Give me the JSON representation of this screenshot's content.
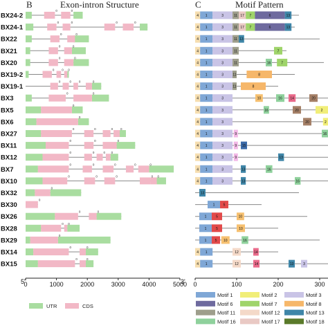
{
  "panel_b": {
    "letter": "B",
    "title": "Exon-intron Structure",
    "end5": "5'",
    "end3": "3'",
    "axis_ticks": [
      "0",
      "1000",
      "2000",
      "3000",
      "4000",
      "5000"
    ],
    "legend": [
      {
        "label": "UTR",
        "color": "#a9dda0"
      },
      {
        "label": "CDS",
        "color": "#f2b8c6"
      }
    ]
  },
  "panel_c": {
    "letter": "C",
    "title": "Motif Pattern",
    "axis_ticks": [
      "0",
      "100",
      "200",
      "300"
    ]
  },
  "genes": [
    "BX24-2",
    "BX24-1",
    "BX22",
    "BX21",
    "BX20",
    "BX19-2",
    "BX19-1",
    "BX3",
    "BX5",
    "BX6",
    "BX27",
    "BX11",
    "BX12",
    "BX7",
    "BX10",
    "BX32",
    "BX30",
    "BX26",
    "BX28",
    "BX29",
    "BX14",
    "BX15"
  ],
  "phase_label": "0",
  "motif_legend": [
    {
      "name": "Motif 1",
      "color": "#7fa7d6"
    },
    {
      "name": "Motif 2",
      "color": "#f1ee78"
    },
    {
      "name": "Motif 3",
      "color": "#c9c4e6"
    },
    {
      "name": "Motif 6",
      "color": "#6e6a9e"
    },
    {
      "name": "Motif 7",
      "color": "#9fd46a"
    },
    {
      "name": "Motif 8",
      "color": "#f6b76a"
    },
    {
      "name": "Motif 11",
      "color": "#9e9e8c"
    },
    {
      "name": "Motif 12",
      "color": "#f4d9c8"
    },
    {
      "name": "Motif 13",
      "color": "#3f86a8"
    },
    {
      "name": "Motif 16",
      "color": "#8fd19c"
    },
    {
      "name": "Motif 17",
      "color": "#e9c9c4"
    },
    {
      "name": "Motif 18",
      "color": "#5a7a2a"
    }
  ],
  "motif_colors": {
    "1": "#7fa7d6",
    "2": "#f1ee78",
    "3": "#c9c4e6",
    "4": "#f6deb0",
    "5": "#e24a4a",
    "6": "#6e6a9e",
    "7": "#9fd46a",
    "8": "#f6b76a",
    "9": "#f2b8e6",
    "10": "#f6c070",
    "11": "#9e9e8c",
    "12": "#f4d9c8",
    "13": "#3f86a8",
    "14": "#e96a8a",
    "15": "#3a6aa8",
    "16": "#8fd19c",
    "17": "#e9c9c4",
    "18": "#5a7a2a",
    "20": "#a47f66"
  },
  "structures": [
    {
      "line": [
        0,
        1850
      ],
      "u": [
        [
          0,
          200
        ],
        [
          1550,
          1850
        ]
      ],
      "c": [
        [
          600,
          950
        ],
        [
          1150,
          1450
        ]
      ]
    },
    {
      "line": [
        0,
        3950
      ],
      "u": [
        [
          0,
          250
        ],
        [
          3700,
          3950
        ]
      ],
      "c": [
        [
          700,
          1000
        ],
        [
          1200,
          1450
        ],
        [
          2550,
          2900
        ],
        [
          3150,
          3500
        ]
      ]
    },
    {
      "line": [
        0,
        2050
      ],
      "u": [
        [
          0,
          200
        ],
        [
          1550,
          2050
        ]
      ],
      "c": [
        [
          800,
          1100
        ],
        [
          1350,
          1600
        ]
      ]
    },
    {
      "line": [
        0,
        1950
      ],
      "u": [
        [
          0,
          150
        ],
        [
          1500,
          1950
        ]
      ],
      "c": [
        [
          750,
          1050
        ],
        [
          1250,
          1500
        ]
      ]
    },
    {
      "line": [
        0,
        2050
      ],
      "u": [
        [
          0,
          150
        ],
        [
          1550,
          2050
        ]
      ],
      "c": [
        [
          750,
          1050
        ],
        [
          1250,
          1550
        ]
      ]
    },
    {
      "line": [
        0,
        1400
      ],
      "u": [
        [
          0,
          100
        ],
        [
          1350,
          1400
        ]
      ],
      "c": [
        [
          550,
          850
        ],
        [
          1000,
          1150
        ],
        [
          1250,
          1350
        ]
      ]
    },
    {
      "line": [
        0,
        2450
      ],
      "u": [
        [
          2150,
          2450
        ]
      ],
      "c": [
        [
          800,
          1050
        ],
        [
          1200,
          1400
        ],
        [
          1550,
          1700
        ],
        [
          1950,
          2150
        ]
      ]
    },
    {
      "line": [
        0,
        2700
      ],
      "u": [
        [
          0,
          200
        ],
        [
          2150,
          2700
        ]
      ],
      "c": [
        [
          750,
          1300
        ],
        [
          1550,
          2150
        ]
      ]
    },
    {
      "line": [
        0,
        1850
      ],
      "u": [
        [
          0,
          500
        ],
        [
          1500,
          1850
        ]
      ],
      "c": [
        [
          500,
          1500
        ]
      ]
    },
    {
      "line": [
        0,
        2050
      ],
      "u": [
        [
          0,
          350
        ],
        [
          1700,
          2050
        ]
      ],
      "c": [
        [
          350,
          1700
        ]
      ]
    },
    {
      "line": [
        0,
        3250
      ],
      "u": [
        [
          0,
          500
        ],
        [
          3050,
          3250
        ]
      ],
      "c": [
        [
          500,
          1500
        ],
        [
          1900,
          2200
        ],
        [
          2500,
          2750
        ],
        [
          2850,
          3050
        ]
      ]
    },
    {
      "line": [
        0,
        3550
      ],
      "u": [
        [
          0,
          650
        ],
        [
          2950,
          3550
        ]
      ],
      "c": [
        [
          650,
          1400
        ],
        [
          1900,
          2200
        ],
        [
          2500,
          2950
        ]
      ]
    },
    {
      "line": [
        0,
        3000
      ],
      "u": [
        [
          0,
          550
        ],
        [
          2750,
          3000
        ]
      ],
      "c": [
        [
          550,
          1400
        ],
        [
          1900,
          2150
        ],
        [
          2300,
          2500
        ],
        [
          2600,
          2750
        ]
      ]
    },
    {
      "line": [
        0,
        4800
      ],
      "u": [
        [
          0,
          400
        ],
        [
          4000,
          4800
        ]
      ],
      "c": [
        [
          400,
          1400
        ],
        [
          1850,
          2150
        ],
        [
          2500,
          2850
        ],
        [
          3250,
          3500
        ],
        [
          3650,
          4000
        ]
      ]
    },
    {
      "line": [
        0,
        4550
      ],
      "u": [
        [
          0,
          550
        ],
        [
          4250,
          4550
        ]
      ],
      "c": [
        [
          550,
          1350
        ],
        [
          1900,
          2250
        ],
        [
          2550,
          2900
        ],
        [
          3700,
          4050
        ],
        [
          4050,
          4250
        ]
      ]
    },
    {
      "line": [
        0,
        1800
      ],
      "u": [
        [
          0,
          300
        ],
        [
          800,
          1800
        ]
      ],
      "c": [
        [
          300,
          800
        ]
      ]
    },
    {
      "line": [
        0,
        400
      ],
      "u": [],
      "c": [
        [
          0,
          400
        ]
      ]
    },
    {
      "line": [
        0,
        3100
      ],
      "u": [
        [
          0,
          950
        ],
        [
          2300,
          3100
        ]
      ],
      "c": [
        [
          950,
          1700
        ],
        [
          2050,
          2300
        ]
      ]
    },
    {
      "line": [
        0,
        1750
      ],
      "u": [
        [
          0,
          500
        ],
        [
          1350,
          1750
        ]
      ],
      "c": [
        [
          500,
          1150
        ],
        [
          1250,
          1350
        ]
      ]
    },
    {
      "line": [
        0,
        2750
      ],
      "u": [
        [
          0,
          150
        ],
        [
          1050,
          2750
        ]
      ],
      "c": [
        [
          150,
          1050
        ]
      ]
    },
    {
      "line": [
        0,
        2350
      ],
      "u": [
        [
          0,
          250
        ],
        [
          1950,
          2350
        ]
      ],
      "c": [
        [
          250,
          1400
        ],
        [
          1750,
          1950
        ]
      ]
    },
    {
      "line": [
        0,
        2200
      ],
      "u": [
        [
          0,
          400
        ],
        [
          1950,
          2200
        ]
      ],
      "c": [
        [
          400,
          1600
        ],
        [
          1750,
          1950
        ]
      ]
    }
  ],
  "motif_rows": [
    {
      "len": 250,
      "m": [
        [
          "4",
          0,
          12
        ],
        [
          "1",
          12,
          42
        ],
        [
          "3",
          42,
          90
        ],
        [
          "11",
          90,
          105
        ],
        [
          "17",
          105,
          122
        ],
        [
          "7",
          122,
          144
        ],
        [
          "6",
          144,
          216
        ],
        [
          "13",
          216,
          232
        ]
      ]
    },
    {
      "len": 240,
      "m": [
        [
          "4",
          0,
          12
        ],
        [
          "1",
          12,
          42
        ],
        [
          "3",
          42,
          90
        ],
        [
          "11",
          90,
          105
        ],
        [
          "17",
          105,
          122
        ],
        [
          "7",
          122,
          144
        ],
        [
          "6",
          144,
          216
        ],
        [
          "13",
          216,
          232
        ]
      ]
    },
    {
      "len": 300,
      "m": [
        [
          "4",
          0,
          12
        ],
        [
          "1",
          12,
          42
        ],
        [
          "3",
          42,
          90
        ],
        [
          "11",
          90,
          105
        ],
        [
          "13",
          105,
          118
        ]
      ]
    },
    {
      "len": 220,
      "m": [
        [
          "4",
          0,
          12
        ],
        [
          "1",
          12,
          42
        ],
        [
          "3",
          42,
          90
        ],
        [
          "11",
          90,
          105
        ],
        [
          "7",
          190,
          210
        ]
      ]
    },
    {
      "len": 310,
      "m": [
        [
          "4",
          0,
          12
        ],
        [
          "1",
          12,
          42
        ],
        [
          "3",
          42,
          90
        ],
        [
          "11",
          90,
          105
        ],
        [
          "16",
          170,
          185
        ],
        [
          "7",
          197,
          222
        ]
      ]
    },
    {
      "len": 240,
      "m": [
        [
          "4",
          0,
          12
        ],
        [
          "1",
          12,
          42
        ],
        [
          "3",
          42,
          90
        ],
        [
          "11",
          90,
          100
        ],
        [
          "8",
          124,
          185
        ]
      ]
    },
    {
      "len": 200,
      "m": [
        [
          "4",
          0,
          12
        ],
        [
          "1",
          12,
          42
        ],
        [
          "3",
          42,
          90
        ],
        [
          "11",
          90,
          100
        ],
        [
          "8",
          110,
          170
        ]
      ]
    },
    {
      "len": 320,
      "m": [
        [
          "4",
          0,
          12
        ],
        [
          "1",
          12,
          42
        ],
        [
          "3",
          42,
          90
        ],
        [
          "10",
          145,
          163
        ],
        [
          "16",
          195,
          215
        ],
        [
          "14",
          225,
          242
        ],
        [
          "20",
          275,
          295
        ]
      ]
    },
    {
      "len": 320,
      "m": [
        [
          "4",
          0,
          12
        ],
        [
          "1",
          12,
          42
        ],
        [
          "3",
          42,
          90
        ],
        [
          "16",
          165,
          178
        ],
        [
          "20",
          235,
          255
        ],
        [
          "2",
          290,
          320
        ]
      ]
    },
    {
      "len": 320,
      "m": [
        [
          "4",
          0,
          12
        ],
        [
          "1",
          12,
          42
        ],
        [
          "3",
          42,
          90
        ],
        [
          "20",
          260,
          280
        ],
        [
          "2",
          308,
          320
        ]
      ]
    },
    {
      "len": 320,
      "m": [
        [
          "4",
          0,
          12
        ],
        [
          "1",
          12,
          42
        ],
        [
          "3",
          42,
          90
        ],
        [
          "9",
          93,
          103
        ],
        [
          "16",
          305,
          320
        ]
      ]
    },
    {
      "len": 320,
      "m": [
        [
          "4",
          0,
          12
        ],
        [
          "1",
          12,
          42
        ],
        [
          "3",
          42,
          90
        ],
        [
          "9",
          93,
          103
        ],
        [
          "15",
          110,
          125
        ]
      ]
    },
    {
      "len": 320,
      "m": [
        [
          "4",
          0,
          12
        ],
        [
          "1",
          12,
          42
        ],
        [
          "3",
          42,
          90
        ],
        [
          "9",
          93,
          103
        ],
        [
          "13",
          200,
          214
        ]
      ]
    },
    {
      "len": 320,
      "m": [
        [
          "4",
          0,
          12
        ],
        [
          "1",
          12,
          42
        ],
        [
          "3",
          42,
          90
        ],
        [
          "13",
          110,
          122
        ],
        [
          "16",
          170,
          186
        ]
      ]
    },
    {
      "len": 320,
      "m": [
        [
          "4",
          0,
          12
        ],
        [
          "1",
          12,
          42
        ],
        [
          "3",
          42,
          90
        ],
        [
          "13",
          110,
          122
        ],
        [
          "16",
          240,
          254
        ]
      ]
    },
    {
      "len": 250,
      "m": [
        [
          "13",
          10,
          25
        ]
      ]
    },
    {
      "len": 160,
      "m": [
        [
          "1",
          30,
          60
        ],
        [
          "5",
          60,
          80
        ]
      ]
    },
    {
      "len": 270,
      "m": [
        [
          "1",
          10,
          40
        ],
        [
          "5",
          40,
          65
        ],
        [
          "10",
          100,
          118
        ]
      ]
    },
    {
      "len": 200,
      "m": [
        [
          "1",
          10,
          40
        ],
        [
          "5",
          40,
          65
        ],
        [
          "10",
          100,
          120
        ]
      ]
    },
    {
      "len": 300,
      "m": [
        [
          "1",
          10,
          40
        ],
        [
          "5",
          40,
          60
        ],
        [
          "10",
          63,
          83
        ],
        [
          "16",
          112,
          128
        ]
      ]
    },
    {
      "len": 200,
      "m": [
        [
          "4",
          0,
          12
        ],
        [
          "1",
          12,
          42
        ],
        [
          "12",
          90,
          110
        ],
        [
          "14",
          140,
          153
        ]
      ]
    },
    {
      "len": 320,
      "m": [
        [
          "4",
          0,
          12
        ],
        [
          "1",
          12,
          42
        ],
        [
          "12",
          90,
          110
        ],
        [
          "14",
          140,
          155
        ],
        [
          "13",
          225,
          240
        ],
        [
          "3",
          255,
          270
        ]
      ]
    }
  ]
}
